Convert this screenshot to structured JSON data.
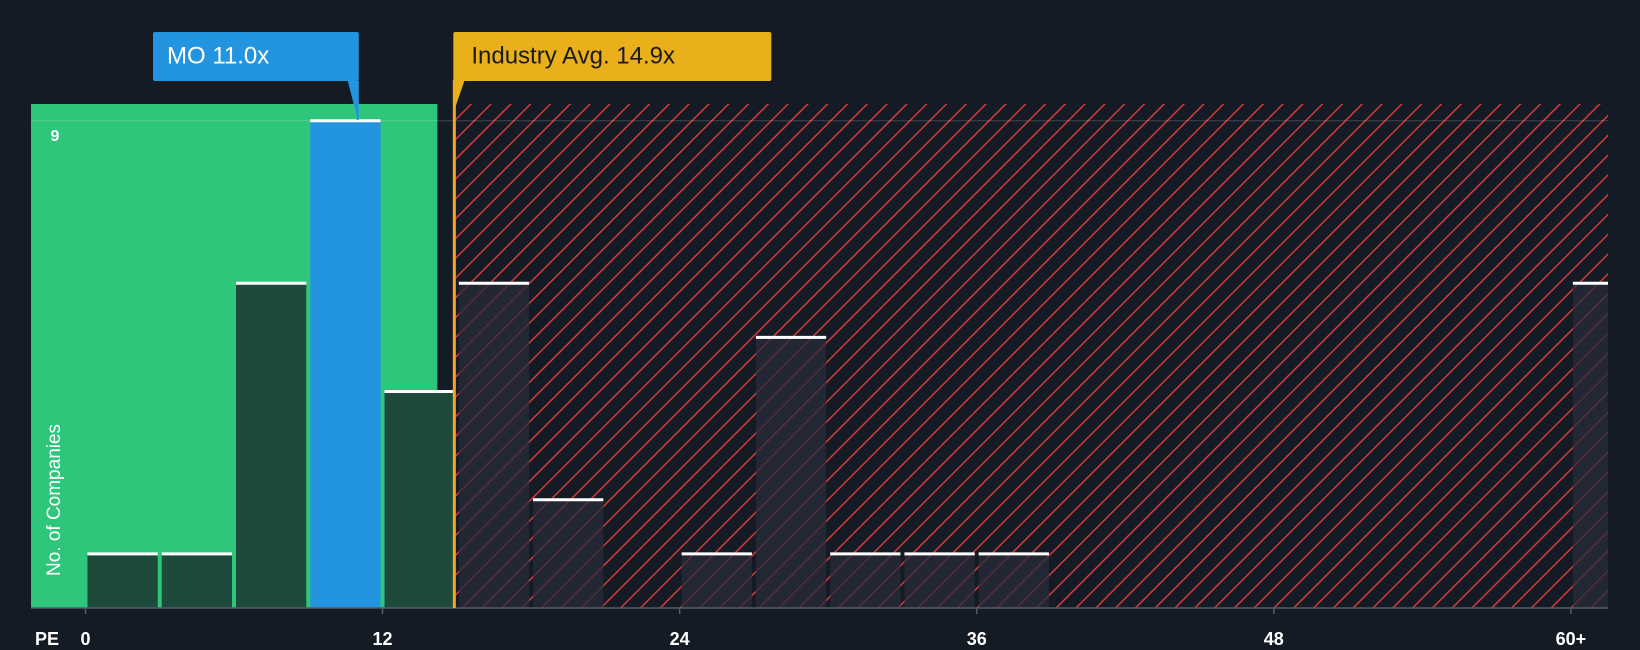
{
  "chart_data": {
    "type": "histogram",
    "x_label": "PE",
    "y_label": "No. of Companies",
    "bins": [
      0,
      3,
      6,
      9,
      12,
      15,
      18,
      21,
      24,
      27,
      30,
      33,
      36,
      39,
      42,
      45,
      48,
      51,
      54,
      57,
      60,
      63
    ],
    "values": [
      1,
      1,
      6,
      9,
      4,
      6,
      2,
      0,
      1,
      5,
      1,
      1,
      1,
      0,
      0,
      0,
      0,
      0,
      0,
      0,
      6
    ],
    "xlim": [
      -2.2,
      61.5
    ],
    "ylim": [
      0,
      9.31
    ],
    "xticks": [
      0,
      12,
      24,
      36,
      48,
      {
        "value": 60,
        "label": "60+"
      }
    ],
    "yticks": [
      9
    ],
    "grid": true,
    "annotations": [
      {
        "label": "MO 11.0x",
        "value": 11.0,
        "color": "#2394df"
      },
      {
        "label": "Industry Avg. 14.9x",
        "value": 14.9,
        "color": "#e9b01b"
      }
    ]
  }
}
